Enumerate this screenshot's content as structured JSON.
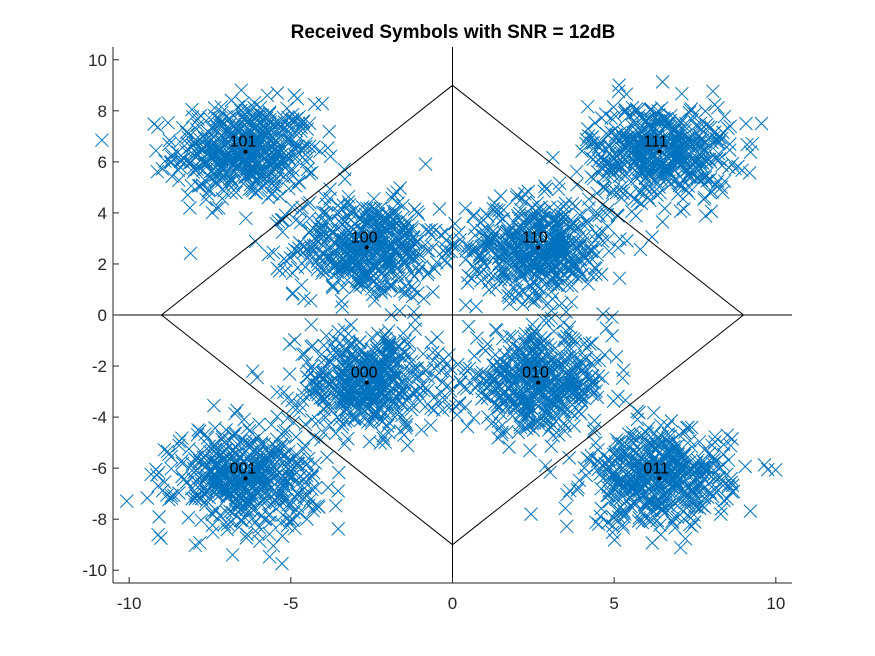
{
  "chart_data": {
    "type": "scatter",
    "title": "Received Symbols with SNR = 12dB",
    "xlabel": "",
    "ylabel": "",
    "xlim": [
      -10.5,
      10.5
    ],
    "ylim": [
      -10.5,
      10.5
    ],
    "xticks": [
      -10,
      -5,
      0,
      5,
      10
    ],
    "yticks": [
      -10,
      -8,
      -6,
      -4,
      -2,
      0,
      2,
      4,
      6,
      8,
      10
    ],
    "xtick_labels": [
      "-10",
      "-5",
      "0",
      "5",
      "10"
    ],
    "ytick_labels": [
      "-10",
      "-8",
      "-6",
      "-4",
      "-2",
      "0",
      "2",
      "4",
      "6",
      "8",
      "10"
    ],
    "grid": false,
    "marker": "x",
    "marker_color": "#0072BD",
    "constellation": [
      {
        "label": "101",
        "x": -6.4,
        "y": 6.4
      },
      {
        "label": "100",
        "x": -2.65,
        "y": 2.65
      },
      {
        "label": "110",
        "x": 2.65,
        "y": 2.65
      },
      {
        "label": "111",
        "x": 6.4,
        "y": 6.4
      },
      {
        "label": "000",
        "x": -2.65,
        "y": -2.65
      },
      {
        "label": "010",
        "x": 2.65,
        "y": -2.65
      },
      {
        "label": "001",
        "x": -6.4,
        "y": -6.4
      },
      {
        "label": "011",
        "x": 6.4,
        "y": -6.4
      }
    ],
    "cluster_spread": {
      "sx": 1.1,
      "sy": 0.95
    },
    "points_per_cluster": 520,
    "decision_boundary": {
      "diamond": [
        [
          0,
          9
        ],
        [
          9,
          0
        ],
        [
          0,
          -9
        ],
        [
          -9,
          0
        ]
      ],
      "axis_lines": true
    }
  }
}
